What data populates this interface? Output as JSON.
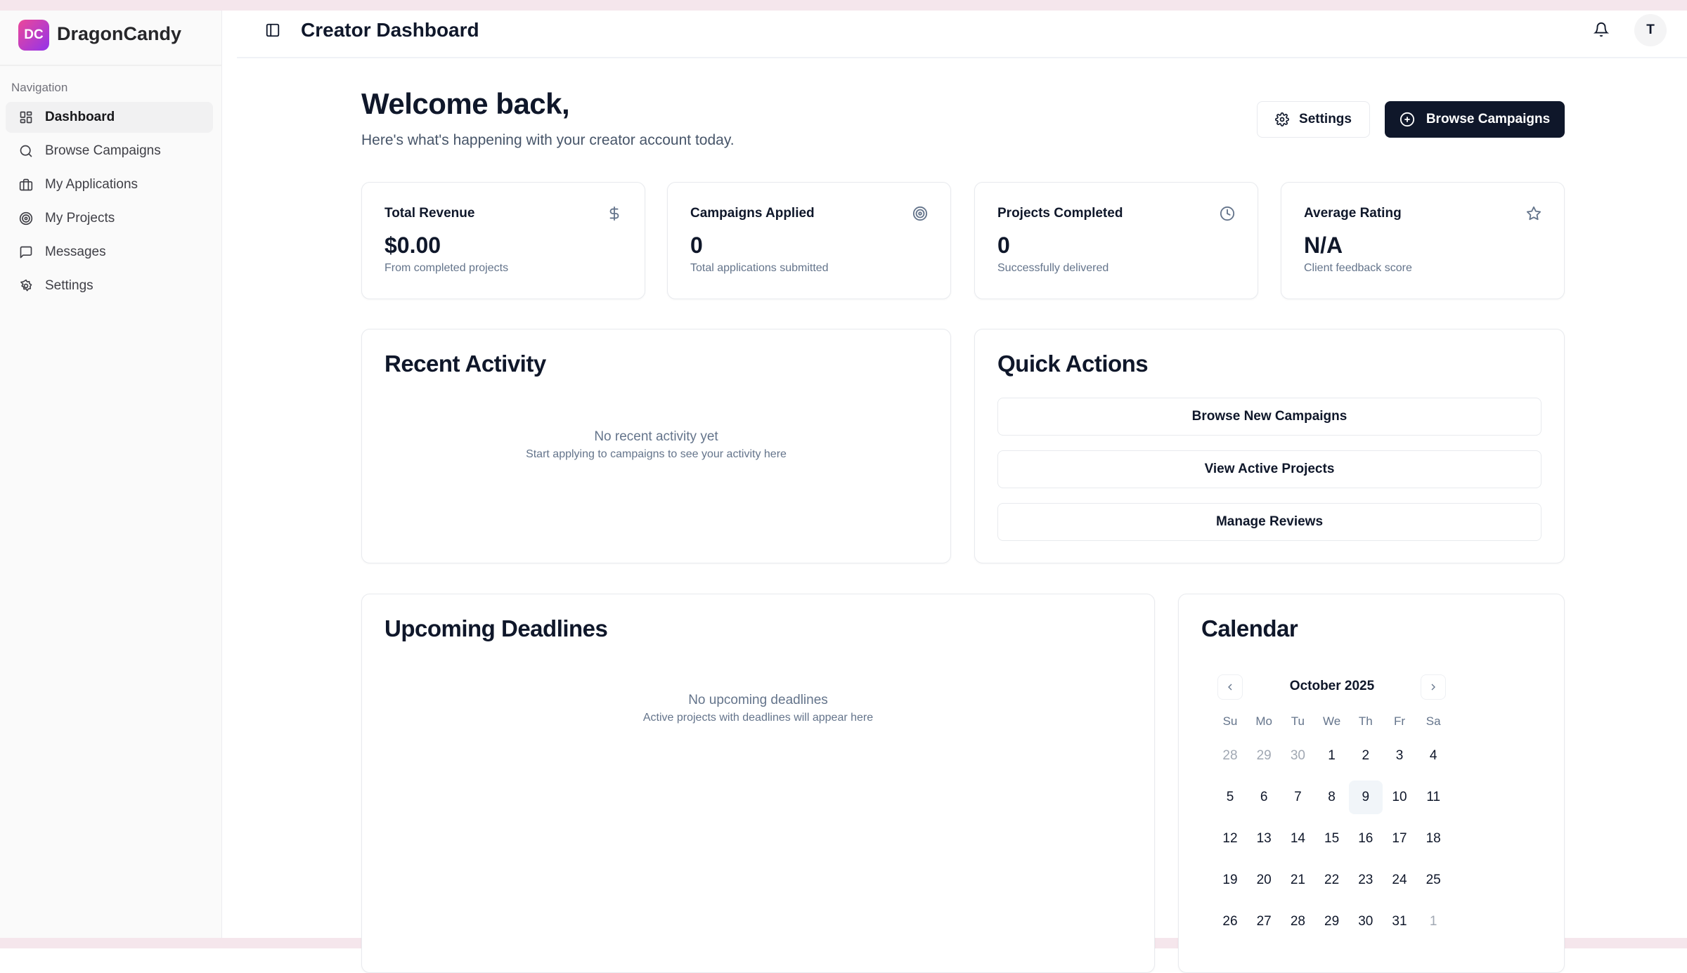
{
  "brand": {
    "logo_text": "DC",
    "name": "DragonCandy"
  },
  "sidebar": {
    "section_label": "Navigation",
    "items": [
      {
        "label": "Dashboard",
        "icon": "layout-grid-icon",
        "active": true
      },
      {
        "label": "Browse Campaigns",
        "icon": "search-icon"
      },
      {
        "label": "My Applications",
        "icon": "briefcase-icon"
      },
      {
        "label": "My Projects",
        "icon": "target-icon"
      },
      {
        "label": "Messages",
        "icon": "message-square-icon"
      },
      {
        "label": "Settings",
        "icon": "gear-icon"
      }
    ]
  },
  "header": {
    "title": "Creator Dashboard",
    "avatar_initial": "T"
  },
  "welcome": {
    "title": "Welcome back,",
    "subtitle": "Here's what's happening with your creator account today.",
    "settings_label": "Settings",
    "browse_label": "Browse Campaigns"
  },
  "stats": [
    {
      "title": "Total Revenue",
      "value": "$0.00",
      "sub": "From completed projects",
      "icon": "dollar-icon"
    },
    {
      "title": "Campaigns Applied",
      "value": "0",
      "sub": "Total applications submitted",
      "icon": "target-icon"
    },
    {
      "title": "Projects Completed",
      "value": "0",
      "sub": "Successfully delivered",
      "icon": "clock-icon"
    },
    {
      "title": "Average Rating",
      "value": "N/A",
      "sub": "Client feedback score",
      "icon": "star-icon"
    }
  ],
  "recent": {
    "title": "Recent Activity",
    "empty_title": "No recent activity yet",
    "empty_sub": "Start applying to campaigns to see your activity here"
  },
  "quick": {
    "title": "Quick Actions",
    "actions": [
      "Browse New Campaigns",
      "View Active Projects",
      "Manage Reviews"
    ]
  },
  "deadlines": {
    "title": "Upcoming Deadlines",
    "empty_title": "No upcoming deadlines",
    "empty_sub": "Active projects with deadlines will appear here"
  },
  "calendar": {
    "title": "Calendar",
    "month": "October 2025",
    "weekdays": [
      "Su",
      "Mo",
      "Tu",
      "We",
      "Th",
      "Fr",
      "Sa"
    ],
    "days": [
      [
        "28",
        "29",
        "30",
        "1",
        "2",
        "3",
        "4"
      ],
      [
        "5",
        "6",
        "7",
        "8",
        "9",
        "10",
        "11"
      ],
      [
        "12",
        "13",
        "14",
        "15",
        "16",
        "17",
        "18"
      ],
      [
        "19",
        "20",
        "21",
        "22",
        "23",
        "24",
        "25"
      ],
      [
        "26",
        "27",
        "28",
        "29",
        "30",
        "31",
        "1"
      ]
    ],
    "today": "9"
  },
  "colors": {
    "primary": "#0f172a",
    "brand_gradient_start": "#ec4899",
    "brand_gradient_end": "#9333ea"
  }
}
